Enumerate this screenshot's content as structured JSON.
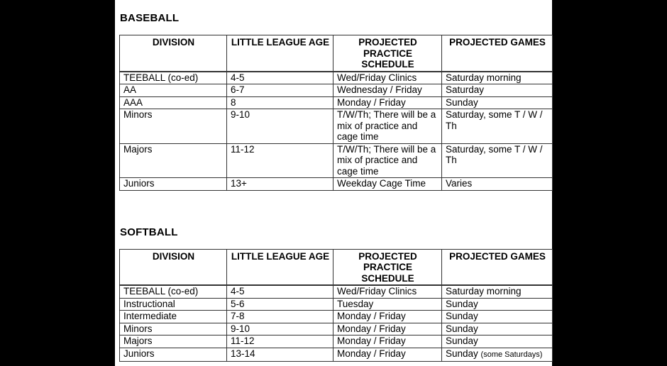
{
  "page": {
    "background_color": "#000000",
    "content_background_color": "#ffffff",
    "text_color": "#000000",
    "border_color": "#333333"
  },
  "sections": [
    {
      "title": "BASEBALL",
      "columns": [
        "DIVISION",
        "LITTLE LEAGUE AGE",
        "PROJECTED PRACTICE SCHEDULE",
        "PROJECTED GAMES"
      ],
      "rows": [
        [
          "TEEBALL (co-ed)",
          "4-5",
          "Wed/Friday Clinics",
          "Saturday morning"
        ],
        [
          "AA",
          "6-7",
          "Wednesday / Friday",
          "Saturday"
        ],
        [
          "AAA",
          "8",
          "Monday / Friday",
          "Sunday"
        ],
        [
          "Minors",
          "9-10",
          "T/W/Th; There will be a mix of practice and cage time",
          "Saturday, some T / W / Th"
        ],
        [
          "Majors",
          "11-12",
          "T/W/Th; There will be a mix of practice and cage time",
          "Saturday, some T / W / Th"
        ],
        [
          "Juniors",
          "13+",
          "Weekday Cage Time",
          "Varies"
        ]
      ]
    },
    {
      "title": "SOFTBALL",
      "columns": [
        "DIVISION",
        "LITTLE LEAGUE AGE",
        "PROJECTED PRACTICE SCHEDULE",
        "PROJECTED GAMES"
      ],
      "rows": [
        [
          "TEEBALL (co-ed)",
          "4-5",
          "Wed/Friday Clinics",
          "Saturday morning"
        ],
        [
          "Instructional",
          "5-6",
          "Tuesday",
          "Sunday"
        ],
        [
          "Intermediate",
          "7-8",
          "Monday / Friday",
          "Sunday"
        ],
        [
          "Minors",
          "9-10",
          "Monday / Friday",
          "Sunday"
        ],
        [
          "Majors",
          "11-12",
          "Monday / Friday",
          "Sunday"
        ],
        [
          "Juniors",
          "13-14",
          "Monday / Friday",
          {
            "text": "Sunday ",
            "note": "(some Saturdays)"
          }
        ]
      ]
    }
  ]
}
